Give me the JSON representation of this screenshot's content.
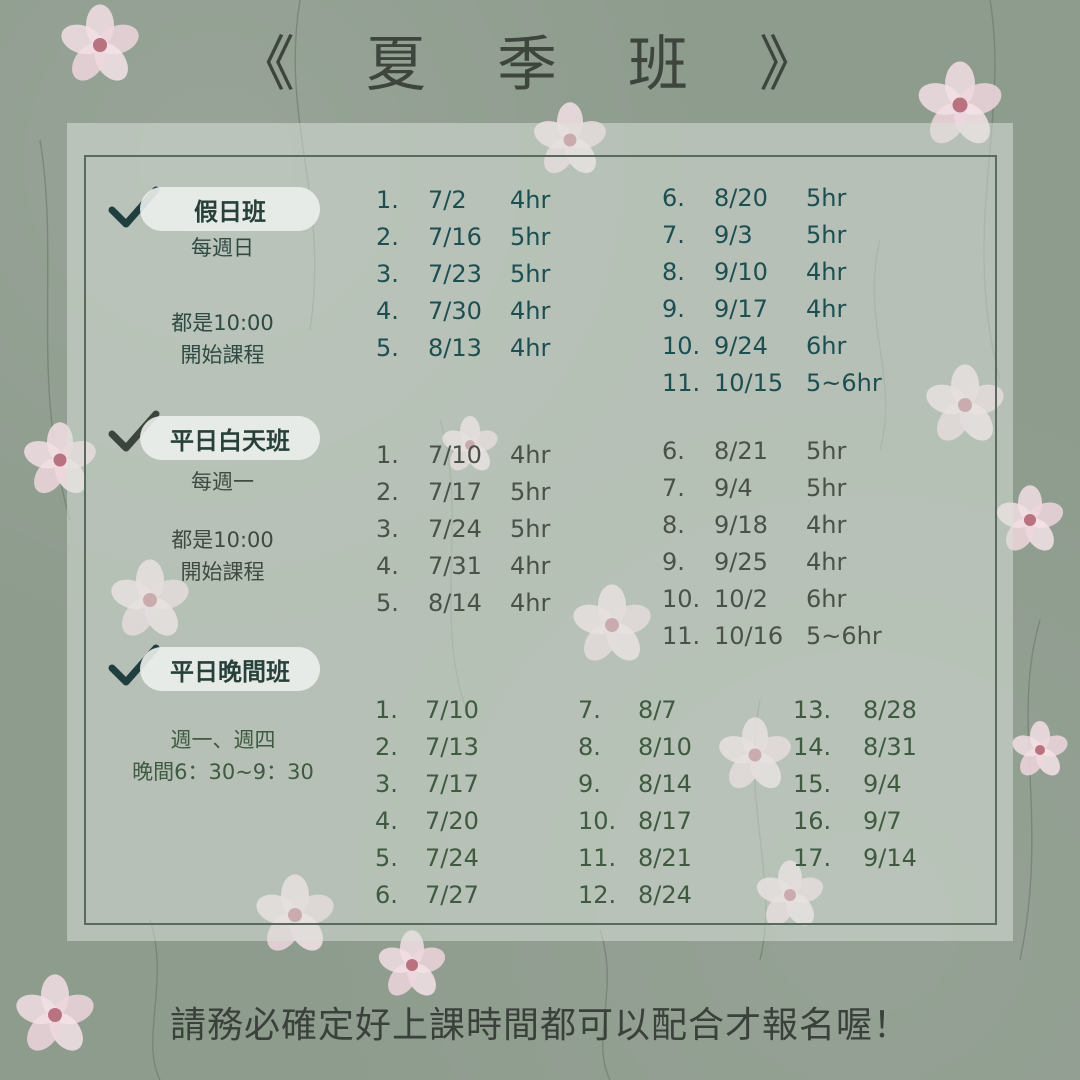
{
  "title": "《 夏 季 班 》",
  "footer": "請務必確定好上課時間都可以配合才報名喔！",
  "sections": {
    "weekend": {
      "name": "假日班",
      "day": "每週日",
      "time_line1": "都是10:00",
      "time_line2": "開始課程",
      "left": [
        {
          "n": "1.",
          "d": "7/2",
          "h": "4hr"
        },
        {
          "n": "2.",
          "d": "7/16",
          "h": "5hr"
        },
        {
          "n": "3.",
          "d": "7/23",
          "h": "5hr"
        },
        {
          "n": "4.",
          "d": "7/30",
          "h": "4hr"
        },
        {
          "n": "5.",
          "d": "8/13",
          "h": "4hr"
        }
      ],
      "right": [
        {
          "n": "6.",
          "d": "8/20",
          "h": "5hr"
        },
        {
          "n": "7.",
          "d": "9/3",
          "h": "5hr"
        },
        {
          "n": "8.",
          "d": "9/10",
          "h": "4hr"
        },
        {
          "n": "9.",
          "d": "9/17",
          "h": "4hr"
        },
        {
          "n": "10.",
          "d": "9/24",
          "h": "6hr"
        },
        {
          "n": "11.",
          "d": "10/15",
          "h": "5~6hr"
        }
      ]
    },
    "weekday_day": {
      "name": "平日白天班",
      "day": "每週一",
      "time_line1": "都是10:00",
      "time_line2": "開始課程",
      "left": [
        {
          "n": "1.",
          "d": "7/10",
          "h": "4hr"
        },
        {
          "n": "2.",
          "d": "7/17",
          "h": "5hr"
        },
        {
          "n": "3.",
          "d": "7/24",
          "h": "5hr"
        },
        {
          "n": "4.",
          "d": "7/31",
          "h": "4hr"
        },
        {
          "n": "5.",
          "d": "8/14",
          "h": "4hr"
        }
      ],
      "right": [
        {
          "n": "6.",
          "d": "8/21",
          "h": "5hr"
        },
        {
          "n": "7.",
          "d": "9/4",
          "h": "5hr"
        },
        {
          "n": "8.",
          "d": "9/18",
          "h": "4hr"
        },
        {
          "n": "9.",
          "d": "9/25",
          "h": "4hr"
        },
        {
          "n": "10.",
          "d": "10/2",
          "h": "6hr"
        },
        {
          "n": "11.",
          "d": "10/16",
          "h": "5~6hr"
        }
      ]
    },
    "weekday_evening": {
      "name": "平日晚間班",
      "day": "週一、週四",
      "time": "晚間6：30~9：30",
      "col1": [
        {
          "n": "1.",
          "d": "7/10"
        },
        {
          "n": "2.",
          "d": "7/13"
        },
        {
          "n": "3.",
          "d": "7/17"
        },
        {
          "n": "4.",
          "d": "7/20"
        },
        {
          "n": "5.",
          "d": "7/24"
        },
        {
          "n": "6.",
          "d": "7/27"
        }
      ],
      "col2": [
        {
          "n": "7.",
          "d": "8/7"
        },
        {
          "n": "8.",
          "d": "8/10"
        },
        {
          "n": "9.",
          "d": "8/14"
        },
        {
          "n": "10.",
          "d": "8/17"
        },
        {
          "n": "11.",
          "d": "8/21"
        },
        {
          "n": "12.",
          "d": "8/24"
        }
      ],
      "col3": [
        {
          "n": "13.",
          "d": "8/28"
        },
        {
          "n": "14.",
          "d": "8/31"
        },
        {
          "n": "15.",
          "d": "9/4"
        },
        {
          "n": "16.",
          "d": "9/7"
        },
        {
          "n": "17.",
          "d": "9/14"
        }
      ]
    }
  },
  "colors": {
    "background": "#8e9c8e",
    "weekend_text": "#1d4f52",
    "weekday_text": "#4a5248",
    "evening_text": "#3f5a40",
    "petal": "#f2dfe4"
  },
  "icons": {
    "checkmark": "checkmark-icon",
    "flower": "flower-icon"
  }
}
